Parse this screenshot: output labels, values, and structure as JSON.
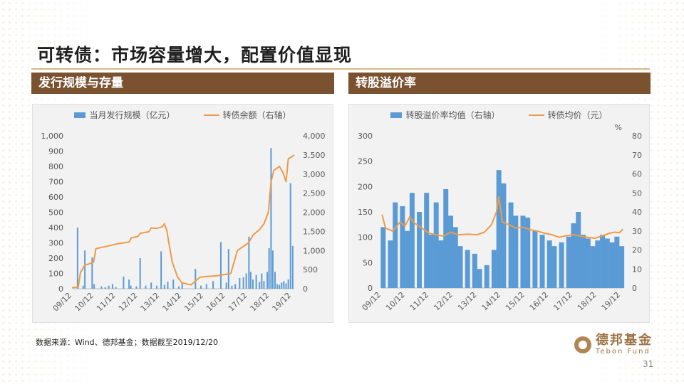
{
  "page": {
    "title": "可转债：市场容量增大，配置价值显现",
    "source_note": "数据来源：Wind、德邦基金；数据截至2019/12/20",
    "logo_cn": "德邦基金",
    "logo_en": "Tebon Fund",
    "page_number": "31"
  },
  "sections": {
    "left_title": "发行规模与存量",
    "right_title": "转股溢价率"
  },
  "chart_data": [
    {
      "type": "bar",
      "title": "发行规模与存量",
      "legend": [
        "当月发行规模（亿元）",
        "转债余额（右轴）"
      ],
      "x_ticks": [
        "09/12",
        "10/12",
        "11/12",
        "12/12",
        "13/12",
        "14/12",
        "15/12",
        "16/12",
        "17/12",
        "18/12",
        "19/12"
      ],
      "x_range": [
        2009.917,
        2019.97
      ],
      "left_axis": {
        "ticks": [
          "0",
          "100",
          "200",
          "300",
          "400",
          "500",
          "600",
          "700",
          "800",
          "900",
          "1,000"
        ],
        "range": [
          0,
          1000
        ]
      },
      "right_axis": {
        "ticks": [
          "0",
          "500",
          "1,000",
          "1,500",
          "2,000",
          "2,500",
          "3,000",
          "3,500",
          "4,000"
        ],
        "range": [
          0,
          4000
        ]
      },
      "series": [
        {
          "name": "当月发行规模（亿元）",
          "kind": "bar",
          "axis": "left",
          "color": "#5b9bd5",
          "points": [
            [
              2010.17,
              400
            ],
            [
              2010.42,
              20
            ],
            [
              2010.5,
              250
            ],
            [
              2010.83,
              205
            ],
            [
              2010.92,
              30
            ],
            [
              2011.25,
              15
            ],
            [
              2011.42,
              10
            ],
            [
              2011.58,
              20
            ],
            [
              2011.75,
              30
            ],
            [
              2011.9,
              10
            ],
            [
              2012.25,
              80
            ],
            [
              2012.5,
              60
            ],
            [
              2012.58,
              20
            ],
            [
              2012.83,
              15
            ],
            [
              2013.0,
              200
            ],
            [
              2013.25,
              20
            ],
            [
              2013.5,
              40
            ],
            [
              2013.75,
              20
            ],
            [
              2013.95,
              245
            ],
            [
              2014.1,
              25
            ],
            [
              2014.25,
              45
            ],
            [
              2014.5,
              60
            ],
            [
              2014.75,
              15
            ],
            [
              2014.9,
              40
            ],
            [
              2015.5,
              130
            ],
            [
              2015.75,
              20
            ],
            [
              2016.0,
              30
            ],
            [
              2016.3,
              50
            ],
            [
              2016.65,
              305
            ],
            [
              2016.9,
              40
            ],
            [
              2017.0,
              260
            ],
            [
              2017.15,
              20
            ],
            [
              2017.3,
              30
            ],
            [
              2017.5,
              70
            ],
            [
              2017.67,
              75
            ],
            [
              2017.8,
              100
            ],
            [
              2017.92,
              340
            ],
            [
              2018.0,
              110
            ],
            [
              2018.1,
              60
            ],
            [
              2018.25,
              90
            ],
            [
              2018.4,
              45
            ],
            [
              2018.5,
              100
            ],
            [
              2018.6,
              50
            ],
            [
              2018.75,
              110
            ],
            [
              2018.83,
              265
            ],
            [
              2018.92,
              920
            ],
            [
              2019.0,
              250
            ],
            [
              2019.1,
              110
            ],
            [
              2019.2,
              30
            ],
            [
              2019.3,
              25
            ],
            [
              2019.4,
              40
            ],
            [
              2019.5,
              50
            ],
            [
              2019.6,
              35
            ],
            [
              2019.7,
              60
            ],
            [
              2019.8,
              690
            ],
            [
              2019.9,
              280
            ]
          ]
        },
        {
          "name": "转债余额（右轴）",
          "kind": "line",
          "axis": "right",
          "color": "#ed9b48",
          "points": [
            [
              2009.92,
              30
            ],
            [
              2010.2,
              40
            ],
            [
              2010.3,
              420
            ],
            [
              2010.5,
              620
            ],
            [
              2010.7,
              650
            ],
            [
              2010.9,
              700
            ],
            [
              2011.0,
              1050
            ],
            [
              2011.5,
              1110
            ],
            [
              2012.0,
              1180
            ],
            [
              2012.5,
              1220
            ],
            [
              2012.6,
              1330
            ],
            [
              2012.9,
              1370
            ],
            [
              2013.0,
              1450
            ],
            [
              2013.4,
              1490
            ],
            [
              2013.5,
              1590
            ],
            [
              2013.75,
              1580
            ],
            [
              2014.0,
              1620
            ],
            [
              2014.1,
              1700
            ],
            [
              2014.2,
              1540
            ],
            [
              2014.45,
              700
            ],
            [
              2014.7,
              300
            ],
            [
              2014.9,
              150
            ],
            [
              2015.3,
              100
            ],
            [
              2015.5,
              200
            ],
            [
              2015.7,
              300
            ],
            [
              2016.0,
              320
            ],
            [
              2016.5,
              340
            ],
            [
              2016.9,
              380
            ],
            [
              2017.1,
              400
            ],
            [
              2017.4,
              1000
            ],
            [
              2017.9,
              1200
            ],
            [
              2018.1,
              1400
            ],
            [
              2018.4,
              1550
            ],
            [
              2018.6,
              1700
            ],
            [
              2018.8,
              2000
            ],
            [
              2018.92,
              2800
            ],
            [
              2019.05,
              3100
            ],
            [
              2019.3,
              3200
            ],
            [
              2019.45,
              3050
            ],
            [
              2019.6,
              2800
            ],
            [
              2019.7,
              3400
            ],
            [
              2019.85,
              3450
            ],
            [
              2019.97,
              3500
            ]
          ]
        }
      ]
    },
    {
      "type": "bar",
      "title": "转股溢价率",
      "legend": [
        "转股溢价率均值（右轴）",
        "转债均价（元）"
      ],
      "x_ticks": [
        "09/12",
        "10/12",
        "11/12",
        "12/12",
        "13/12",
        "14/12",
        "15/12",
        "16/12",
        "17/12",
        "18/12",
        "19/12"
      ],
      "x_range": [
        2009.917,
        2019.97
      ],
      "left_axis": {
        "ticks": [
          "0",
          "50",
          "100",
          "150",
          "200",
          "250",
          "300"
        ],
        "range": [
          0,
          300
        ]
      },
      "right_axis": {
        "label": "%",
        "ticks": [
          "0",
          "10",
          "20",
          "30",
          "40",
          "50",
          "60",
          "70",
          "80"
        ],
        "range": [
          0,
          80
        ]
      },
      "series": [
        {
          "name": "转股溢价率均值（右轴）",
          "kind": "bar",
          "axis": "right",
          "color": "#5b9bd5",
          "points": [
            [
              2010.0,
              32
            ],
            [
              2010.3,
              25
            ],
            [
              2010.5,
              45
            ],
            [
              2010.8,
              43
            ],
            [
              2011.0,
              30
            ],
            [
              2011.2,
              50
            ],
            [
              2011.5,
              40
            ],
            [
              2011.8,
              50
            ],
            [
              2012.0,
              28
            ],
            [
              2012.2,
              45
            ],
            [
              2012.4,
              25
            ],
            [
              2012.6,
              52
            ],
            [
              2012.8,
              38
            ],
            [
              2013.0,
              32
            ],
            [
              2013.2,
              22
            ],
            [
              2013.5,
              20
            ],
            [
              2013.8,
              18
            ],
            [
              2014.0,
              10
            ],
            [
              2014.3,
              12
            ],
            [
              2014.6,
              20
            ],
            [
              2014.8,
              62
            ],
            [
              2015.0,
              55
            ],
            [
              2015.3,
              45
            ],
            [
              2015.5,
              38
            ],
            [
              2015.8,
              38
            ],
            [
              2016.0,
              37
            ],
            [
              2016.3,
              30
            ],
            [
              2016.6,
              28
            ],
            [
              2016.9,
              25
            ],
            [
              2017.1,
              22
            ],
            [
              2017.4,
              24
            ],
            [
              2017.7,
              27
            ],
            [
              2017.9,
              34
            ],
            [
              2018.1,
              40
            ],
            [
              2018.3,
              28
            ],
            [
              2018.5,
              26
            ],
            [
              2018.7,
              22
            ],
            [
              2018.9,
              25
            ],
            [
              2019.1,
              28
            ],
            [
              2019.3,
              26
            ],
            [
              2019.5,
              24
            ],
            [
              2019.7,
              27
            ],
            [
              2019.9,
              22
            ]
          ]
        },
        {
          "name": "转债均价（元）",
          "kind": "line",
          "axis": "left",
          "color": "#ed9b48",
          "points": [
            [
              2009.95,
              145
            ],
            [
              2010.1,
              118
            ],
            [
              2010.4,
              112
            ],
            [
              2010.7,
              130
            ],
            [
              2010.9,
              122
            ],
            [
              2011.1,
              140
            ],
            [
              2011.3,
              128
            ],
            [
              2011.6,
              118
            ],
            [
              2011.9,
              108
            ],
            [
              2012.2,
              105
            ],
            [
              2012.5,
              102
            ],
            [
              2012.8,
              110
            ],
            [
              2013.1,
              105
            ],
            [
              2013.5,
              106
            ],
            [
              2013.9,
              105
            ],
            [
              2014.2,
              110
            ],
            [
              2014.5,
              125
            ],
            [
              2014.7,
              150
            ],
            [
              2014.8,
              180
            ],
            [
              2014.95,
              130
            ],
            [
              2015.2,
              125
            ],
            [
              2015.5,
              118
            ],
            [
              2015.8,
              120
            ],
            [
              2016.1,
              115
            ],
            [
              2016.4,
              112
            ],
            [
              2016.7,
              108
            ],
            [
              2017.0,
              105
            ],
            [
              2017.3,
              100
            ],
            [
              2017.6,
              103
            ],
            [
              2017.9,
              105
            ],
            [
              2018.2,
              102
            ],
            [
              2018.5,
              100
            ],
            [
              2018.8,
              98
            ],
            [
              2019.1,
              103
            ],
            [
              2019.4,
              108
            ],
            [
              2019.6,
              110
            ],
            [
              2019.8,
              109
            ],
            [
              2019.95,
              116
            ]
          ]
        }
      ]
    }
  ]
}
